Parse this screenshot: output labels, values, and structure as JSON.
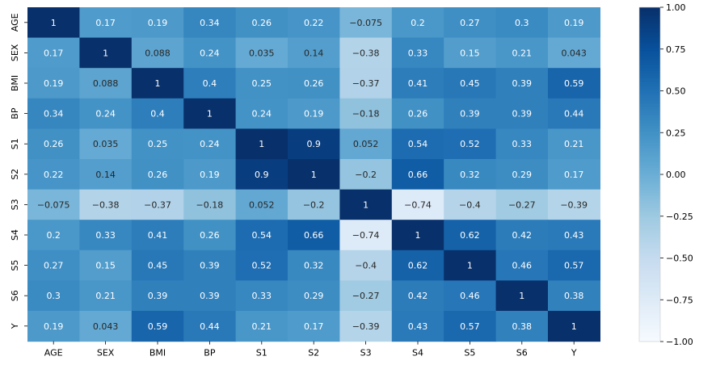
{
  "chart_data": {
    "type": "heatmap",
    "title": "",
    "xlabel": "",
    "ylabel": "",
    "x_labels": [
      "AGE",
      "SEX",
      "BMI",
      "BP",
      "S1",
      "S2",
      "S3",
      "S4",
      "S5",
      "S6",
      "Y"
    ],
    "y_labels": [
      "AGE",
      "SEX",
      "BMI",
      "BP",
      "S1",
      "S2",
      "S3",
      "S4",
      "S5",
      "S6",
      "Y"
    ],
    "values": [
      [
        1,
        0.17,
        0.19,
        0.34,
        0.26,
        0.22,
        -0.075,
        0.2,
        0.27,
        0.3,
        0.19
      ],
      [
        0.17,
        1,
        0.088,
        0.24,
        0.035,
        0.14,
        -0.38,
        0.33,
        0.15,
        0.21,
        0.043
      ],
      [
        0.19,
        0.088,
        1,
        0.4,
        0.25,
        0.26,
        -0.37,
        0.41,
        0.45,
        0.39,
        0.59
      ],
      [
        0.34,
        0.24,
        0.4,
        1,
        0.24,
        0.19,
        -0.18,
        0.26,
        0.39,
        0.39,
        0.44
      ],
      [
        0.26,
        0.035,
        0.25,
        0.24,
        1,
        0.9,
        0.052,
        0.54,
        0.52,
        0.33,
        0.21
      ],
      [
        0.22,
        0.14,
        0.26,
        0.19,
        0.9,
        1,
        -0.2,
        0.66,
        0.32,
        0.29,
        0.17
      ],
      [
        -0.075,
        -0.38,
        -0.37,
        -0.18,
        0.052,
        -0.2,
        1,
        -0.74,
        -0.4,
        -0.27,
        -0.39
      ],
      [
        0.2,
        0.33,
        0.41,
        0.26,
        0.54,
        0.66,
        -0.74,
        1,
        0.62,
        0.42,
        0.43
      ],
      [
        0.27,
        0.15,
        0.45,
        0.39,
        0.52,
        0.32,
        -0.4,
        0.62,
        1,
        0.46,
        0.57
      ],
      [
        0.3,
        0.21,
        0.39,
        0.39,
        0.33,
        0.29,
        -0.27,
        0.42,
        0.46,
        1,
        0.38
      ],
      [
        0.19,
        0.043,
        0.59,
        0.44,
        0.21,
        0.17,
        -0.39,
        0.43,
        0.57,
        0.38,
        1
      ]
    ],
    "color_range": [
      -1,
      1
    ],
    "colormap": "Blues",
    "colorbar": {
      "ticks": [
        1.0,
        0.75,
        0.5,
        0.25,
        0.0,
        -0.25,
        -0.5,
        -0.75,
        -1.0
      ],
      "tick_labels": [
        "1.00",
        "0.75",
        "0.50",
        "0.25",
        "0.00",
        "−0.25",
        "−0.50",
        "−0.75",
        "−1.00"
      ],
      "placement": "right"
    },
    "annotated": true,
    "grid": false
  }
}
